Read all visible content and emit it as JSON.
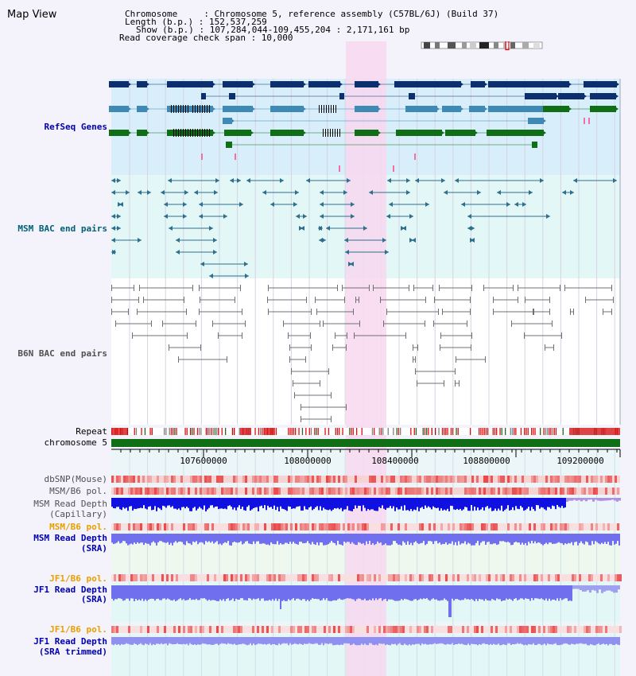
{
  "header": {
    "view_title": "Map View",
    "info_lines": [
      "Chromosome     : Chromosome 5, reference assembly (C57BL/6J) (Build 37)",
      "Length (b.p.) : 152,537,259",
      "Show (b.p.) : 107,284,044-109,455,204 : 2,171,161 bp",
      "Read coverage check span : 10,000"
    ]
  },
  "tracks": {
    "refseq": "RefSeq Genes",
    "msm_bac": "MSM BAC end pairs",
    "b6n_bac": "B6N BAC end pairs",
    "repeat": "Repeat",
    "chromosome": "chromosome 5",
    "dbsnp": "dbSNP(Mouse)",
    "msm_b6_pol": "MSM/B6 pol.",
    "msm_read_depth_cap_1": "MSM Read Depth",
    "msm_read_depth_cap_2": "(Capillary)",
    "msm_b6_pol_2": "MSM/B6 pol.",
    "msm_read_depth_sra_1": "MSM Read Depth",
    "msm_read_depth_sra_2": "(SRA)",
    "jf1_b6_pol": "JF1/B6 pol.",
    "jf1_read_depth_1": "JF1 Read Depth",
    "jf1_read_depth_2": "(SRA)",
    "jf1_b6_pol_2": "JF1/B6 pol.",
    "jf1_trim_1": "JF1 Read Depth",
    "jf1_trim_2": "(SRA trimmed)"
  },
  "axis": {
    "tick_labels": [
      "107600000",
      "108000000",
      "108400000",
      "108800000",
      "109200000"
    ]
  },
  "colors": {
    "page_bg": "#f4f2fa",
    "refseq_bg": "#d8eefa",
    "bac_bg": "#e4f7f7",
    "highlight": "#f8d8f0",
    "gene_dark": "#0c2f6e",
    "gene_mid": "#3f8ab5",
    "gene_green": "#0f6e16",
    "msm_bac": "#2e6f8e",
    "b6n_bac": "#707070",
    "label_blue": "#0000b0",
    "label_teal": "#006078",
    "label_gray": "#505050",
    "label_orange": "#e8a000",
    "depth_dark_blue": "#1010e0",
    "depth_blue": "#7070ee",
    "pol_red": "#e84040"
  }
}
